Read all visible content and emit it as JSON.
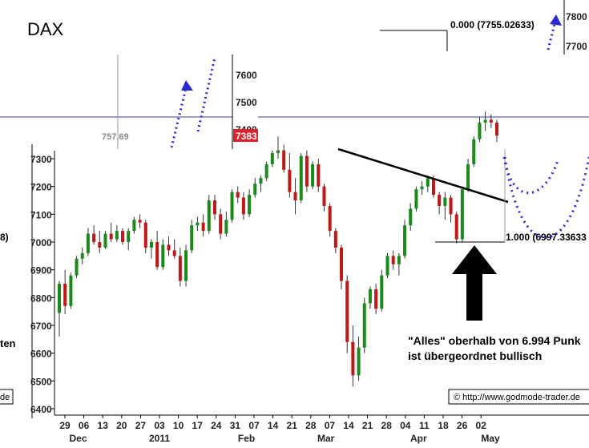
{
  "chart_data": {
    "type": "candlestick",
    "title": "DAX",
    "ylim": [
      6400,
      7800
    ],
    "yticks": [
      6400,
      6500,
      6600,
      6700,
      6800,
      6900,
      7000,
      7100,
      7200,
      7300,
      7400,
      7500,
      7600,
      7700,
      7800
    ],
    "xticks": [
      "29",
      "06",
      "13",
      "20",
      "27",
      "03",
      "10",
      "17",
      "24",
      "31",
      "07",
      "14",
      "21",
      "28",
      "07",
      "14",
      "21",
      "28",
      "04",
      "11",
      "18",
      "26",
      "02"
    ],
    "months": [
      "Dec",
      "2011",
      "Feb",
      "Mar",
      "Apr",
      "May"
    ],
    "price_badge": "7383",
    "inset_label": "757.69",
    "fib_top_label": "0.000 (7755.02633)",
    "fib_bottom_label": "1.000 (6997.33633",
    "side_fragments": [
      "8)",
      "ten",
      "de"
    ],
    "annotation_line1": "\"Alles\" oberhalb von 6.994 Punk",
    "annotation_line2": "ist übergeordnet bullisch",
    "copyright": "© http://www.godmode-trader.de",
    "candles": [
      {
        "o": 6745,
        "h": 6860,
        "l": 6660,
        "c": 6850
      },
      {
        "o": 6850,
        "h": 6900,
        "l": 6740,
        "c": 6770
      },
      {
        "o": 6770,
        "h": 6890,
        "l": 6760,
        "c": 6880
      },
      {
        "o": 6880,
        "h": 6950,
        "l": 6870,
        "c": 6940
      },
      {
        "o": 6940,
        "h": 6980,
        "l": 6920,
        "c": 6960
      },
      {
        "o": 6960,
        "h": 7050,
        "l": 6950,
        "c": 7030
      },
      {
        "o": 7030,
        "h": 7060,
        "l": 6990,
        "c": 7000
      },
      {
        "o": 7000,
        "h": 7040,
        "l": 6960,
        "c": 6980
      },
      {
        "o": 6980,
        "h": 7040,
        "l": 6975,
        "c": 7030
      },
      {
        "o": 7030,
        "h": 7070,
        "l": 7000,
        "c": 7010
      },
      {
        "o": 7010,
        "h": 7060,
        "l": 7000,
        "c": 7040
      },
      {
        "o": 7040,
        "h": 7050,
        "l": 6990,
        "c": 7000
      },
      {
        "o": 7000,
        "h": 7050,
        "l": 6970,
        "c": 7040
      },
      {
        "o": 7040,
        "h": 7090,
        "l": 7030,
        "c": 7080
      },
      {
        "o": 7080,
        "h": 7100,
        "l": 7050,
        "c": 7070
      },
      {
        "o": 7070,
        "h": 7080,
        "l": 6960,
        "c": 6980
      },
      {
        "o": 6980,
        "h": 7010,
        "l": 6940,
        "c": 7000
      },
      {
        "o": 7000,
        "h": 7040,
        "l": 6900,
        "c": 6910
      },
      {
        "o": 6910,
        "h": 7010,
        "l": 6900,
        "c": 6990
      },
      {
        "o": 6990,
        "h": 7020,
        "l": 6950,
        "c": 6970
      },
      {
        "o": 6970,
        "h": 7010,
        "l": 6940,
        "c": 6950
      },
      {
        "o": 6950,
        "h": 6980,
        "l": 6840,
        "c": 6860
      },
      {
        "o": 6860,
        "h": 6990,
        "l": 6840,
        "c": 6970
      },
      {
        "o": 6970,
        "h": 7080,
        "l": 6960,
        "c": 7060
      },
      {
        "o": 7060,
        "h": 7090,
        "l": 7040,
        "c": 7070
      },
      {
        "o": 7070,
        "h": 7100,
        "l": 7020,
        "c": 7040
      },
      {
        "o": 7040,
        "h": 7170,
        "l": 7030,
        "c": 7150
      },
      {
        "o": 7150,
        "h": 7170,
        "l": 7080,
        "c": 7100
      },
      {
        "o": 7100,
        "h": 7120,
        "l": 7010,
        "c": 7030
      },
      {
        "o": 7030,
        "h": 7110,
        "l": 7020,
        "c": 7080
      },
      {
        "o": 7080,
        "h": 7190,
        "l": 7070,
        "c": 7180
      },
      {
        "o": 7180,
        "h": 7200,
        "l": 7140,
        "c": 7160
      },
      {
        "o": 7160,
        "h": 7180,
        "l": 7080,
        "c": 7100
      },
      {
        "o": 7100,
        "h": 7190,
        "l": 7090,
        "c": 7170
      },
      {
        "o": 7170,
        "h": 7230,
        "l": 7160,
        "c": 7210
      },
      {
        "o": 7210,
        "h": 7240,
        "l": 7180,
        "c": 7230
      },
      {
        "o": 7230,
        "h": 7290,
        "l": 7220,
        "c": 7280
      },
      {
        "o": 7280,
        "h": 7330,
        "l": 7270,
        "c": 7320
      },
      {
        "o": 7320,
        "h": 7380,
        "l": 7300,
        "c": 7330
      },
      {
        "o": 7330,
        "h": 7350,
        "l": 7250,
        "c": 7260
      },
      {
        "o": 7260,
        "h": 7320,
        "l": 7160,
        "c": 7180
      },
      {
        "o": 7180,
        "h": 7230,
        "l": 7100,
        "c": 7150
      },
      {
        "o": 7150,
        "h": 7320,
        "l": 7140,
        "c": 7310
      },
      {
        "o": 7310,
        "h": 7330,
        "l": 7180,
        "c": 7200
      },
      {
        "o": 7200,
        "h": 7290,
        "l": 7190,
        "c": 7280
      },
      {
        "o": 7280,
        "h": 7300,
        "l": 7180,
        "c": 7200
      },
      {
        "o": 7200,
        "h": 7210,
        "l": 7110,
        "c": 7130
      },
      {
        "o": 7130,
        "h": 7140,
        "l": 7020,
        "c": 7040
      },
      {
        "o": 7040,
        "h": 7050,
        "l": 6960,
        "c": 6980
      },
      {
        "o": 6980,
        "h": 6990,
        "l": 6830,
        "c": 6860
      },
      {
        "o": 6860,
        "h": 6880,
        "l": 6600,
        "c": 6640
      },
      {
        "o": 6640,
        "h": 6700,
        "l": 6480,
        "c": 6520
      },
      {
        "o": 6520,
        "h": 6660,
        "l": 6500,
        "c": 6620
      },
      {
        "o": 6620,
        "h": 6800,
        "l": 6600,
        "c": 6780
      },
      {
        "o": 6780,
        "h": 6840,
        "l": 6760,
        "c": 6830
      },
      {
        "o": 6830,
        "h": 6850,
        "l": 6740,
        "c": 6760
      },
      {
        "o": 6760,
        "h": 6900,
        "l": 6750,
        "c": 6880
      },
      {
        "o": 6880,
        "h": 6960,
        "l": 6870,
        "c": 6950
      },
      {
        "o": 6950,
        "h": 6970,
        "l": 6900,
        "c": 6920
      },
      {
        "o": 6920,
        "h": 6960,
        "l": 6880,
        "c": 6950
      },
      {
        "o": 6950,
        "h": 7080,
        "l": 6940,
        "c": 7060
      },
      {
        "o": 7060,
        "h": 7140,
        "l": 7040,
        "c": 7120
      },
      {
        "o": 7120,
        "h": 7200,
        "l": 7110,
        "c": 7190
      },
      {
        "o": 7190,
        "h": 7220,
        "l": 7170,
        "c": 7200
      },
      {
        "o": 7200,
        "h": 7240,
        "l": 7180,
        "c": 7230
      },
      {
        "o": 7230,
        "h": 7240,
        "l": 7160,
        "c": 7170
      },
      {
        "o": 7170,
        "h": 7180,
        "l": 7100,
        "c": 7130
      },
      {
        "o": 7130,
        "h": 7180,
        "l": 7080,
        "c": 7160
      },
      {
        "o": 7160,
        "h": 7170,
        "l": 7070,
        "c": 7100
      },
      {
        "o": 7100,
        "h": 7110,
        "l": 6995,
        "c": 7010
      },
      {
        "o": 7010,
        "h": 7200,
        "l": 7000,
        "c": 7190
      },
      {
        "o": 7190,
        "h": 7300,
        "l": 7180,
        "c": 7280
      },
      {
        "o": 7280,
        "h": 7380,
        "l": 7270,
        "c": 7370
      },
      {
        "o": 7370,
        "h": 7450,
        "l": 7360,
        "c": 7430
      },
      {
        "o": 7430,
        "h": 7470,
        "l": 7400,
        "c": 7440
      },
      {
        "o": 7440,
        "h": 7460,
        "l": 7410,
        "c": 7430
      },
      {
        "o": 7430,
        "h": 7440,
        "l": 7360,
        "c": 7383
      }
    ]
  }
}
